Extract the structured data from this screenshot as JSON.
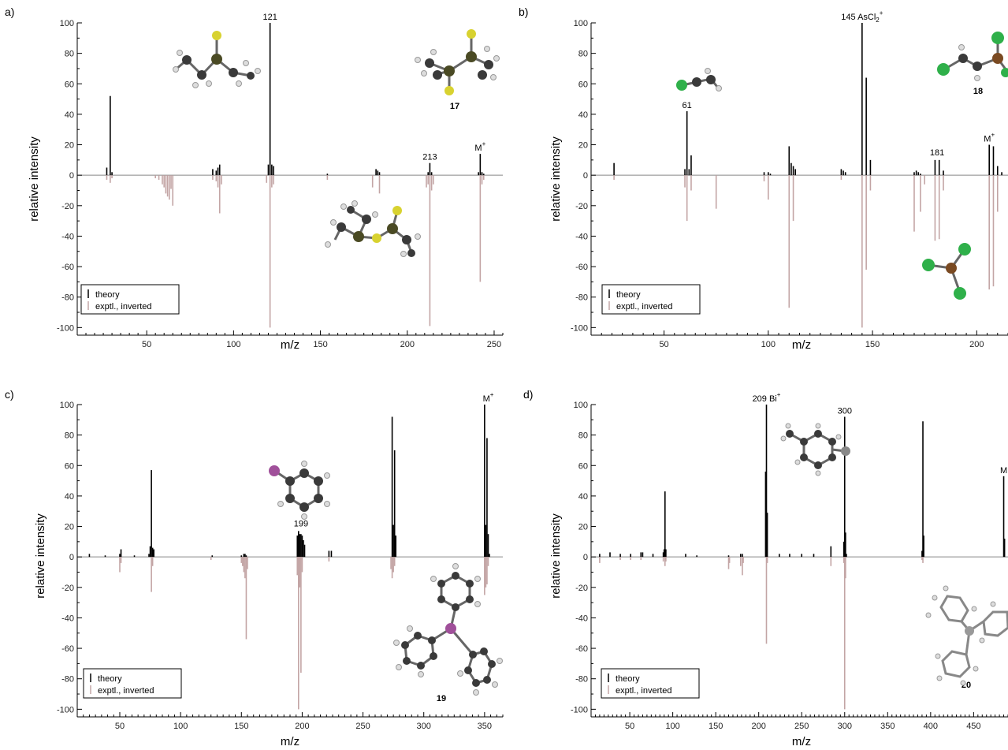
{
  "chart_data": [
    {
      "panel": "a)",
      "type": "bar",
      "xlabel": "m/z",
      "ylabel": "relative intensity",
      "xlim": [
        10,
        255
      ],
      "ylim": [
        -105,
        100
      ],
      "xticks": [
        50,
        100,
        150,
        200,
        250
      ],
      "yticks": [
        100,
        80,
        60,
        40,
        20,
        0,
        -20,
        -40,
        -60,
        -80,
        -100
      ],
      "legend": {
        "placement": "bottom-left",
        "entries": [
          "theory",
          "exptl., inverted"
        ]
      },
      "colors": {
        "theory": "#000000",
        "experiment": "#c3a5a5"
      },
      "compound": "17",
      "annotations": [
        {
          "x": 121,
          "y": 100,
          "text": "121"
        },
        {
          "x": 213,
          "y": 8,
          "text": "213"
        },
        {
          "x": 242,
          "y": 14,
          "text": "M",
          "sup": "+"
        }
      ],
      "series": [
        {
          "name": "theory",
          "points": [
            [
              27,
              5
            ],
            [
              29,
              52
            ],
            [
              30,
              2
            ],
            [
              88,
              4
            ],
            [
              90,
              3
            ],
            [
              91,
              5
            ],
            [
              92,
              7
            ],
            [
              120,
              7
            ],
            [
              121,
              100
            ],
            [
              122,
              7
            ],
            [
              123,
              6
            ],
            [
              154,
              1
            ],
            [
              182,
              4
            ],
            [
              183,
              3
            ],
            [
              184,
              2
            ],
            [
              212,
              2
            ],
            [
              213,
              8
            ],
            [
              214,
              2
            ],
            [
              241,
              2
            ],
            [
              242,
              14
            ],
            [
              243,
              2
            ],
            [
              244,
              1
            ]
          ]
        },
        {
          "name": "exptl., inverted",
          "points": [
            [
              27,
              -3
            ],
            [
              29,
              -5
            ],
            [
              30,
              -2
            ],
            [
              55,
              -2
            ],
            [
              57,
              -3
            ],
            [
              59,
              -6
            ],
            [
              60,
              -8
            ],
            [
              61,
              -12
            ],
            [
              62,
              -14
            ],
            [
              63,
              -16
            ],
            [
              64,
              -9
            ],
            [
              65,
              -20
            ],
            [
              88,
              -3
            ],
            [
              90,
              -4
            ],
            [
              91,
              -8
            ],
            [
              92,
              -25
            ],
            [
              93,
              -6
            ],
            [
              119,
              -5
            ],
            [
              121,
              -100
            ],
            [
              122,
              -8
            ],
            [
              123,
              -6
            ],
            [
              154,
              -3
            ],
            [
              180,
              -8
            ],
            [
              184,
              -12
            ],
            [
              211,
              -8
            ],
            [
              212,
              -6
            ],
            [
              213,
              -99
            ],
            [
              214,
              -10
            ],
            [
              215,
              -6
            ],
            [
              242,
              -70
            ],
            [
              243,
              -6
            ],
            [
              244,
              -3
            ]
          ]
        }
      ]
    },
    {
      "panel": "b)",
      "type": "bar",
      "xlabel": "m/z",
      "ylabel": "relative intensity",
      "xlim": [
        15,
        215
      ],
      "ylim": [
        -105,
        100
      ],
      "xticks": [
        50,
        100,
        150,
        200
      ],
      "yticks": [
        100,
        80,
        60,
        40,
        20,
        0,
        -20,
        -40,
        -60,
        -80,
        -100
      ],
      "legend": {
        "placement": "bottom-left",
        "entries": [
          "theory",
          "exptl., inverted"
        ]
      },
      "colors": {
        "theory": "#000000",
        "experiment": "#c3a5a5"
      },
      "compound": "18",
      "annotations": [
        {
          "x": 145,
          "y": 100,
          "text": "145 AsCl",
          "sub": "2",
          "sup": "+"
        },
        {
          "x": 61,
          "y": 42,
          "text": "61"
        },
        {
          "x": 181,
          "y": 11,
          "text": "181"
        },
        {
          "x": 206,
          "y": 20,
          "text": "M",
          "sup": "+"
        }
      ],
      "series": [
        {
          "name": "theory",
          "points": [
            [
              26,
              8
            ],
            [
              60,
              4
            ],
            [
              61,
              42
            ],
            [
              62,
              4
            ],
            [
              63,
              13
            ],
            [
              98,
              2
            ],
            [
              100,
              2
            ],
            [
              101,
              1
            ],
            [
              110,
              19
            ],
            [
              111,
              8
            ],
            [
              112,
              6
            ],
            [
              113,
              4
            ],
            [
              135,
              4
            ],
            [
              136,
              3
            ],
            [
              137,
              2
            ],
            [
              145,
              100
            ],
            [
              147,
              64
            ],
            [
              149,
              10
            ],
            [
              170,
              2
            ],
            [
              171,
              3
            ],
            [
              172,
              2
            ],
            [
              173,
              1
            ],
            [
              180,
              10
            ],
            [
              182,
              10
            ],
            [
              184,
              3
            ],
            [
              206,
              20
            ],
            [
              208,
              19
            ],
            [
              210,
              6
            ],
            [
              212,
              2
            ]
          ]
        },
        {
          "name": "exptl., inverted",
          "points": [
            [
              26,
              -3
            ],
            [
              60,
              -8
            ],
            [
              61,
              -30
            ],
            [
              63,
              -10
            ],
            [
              75,
              -22
            ],
            [
              98,
              -4
            ],
            [
              100,
              -16
            ],
            [
              110,
              -87
            ],
            [
              112,
              -30
            ],
            [
              135,
              -3
            ],
            [
              145,
              -100
            ],
            [
              147,
              -62
            ],
            [
              149,
              -10
            ],
            [
              170,
              -37
            ],
            [
              173,
              -24
            ],
            [
              175,
              -6
            ],
            [
              180,
              -43
            ],
            [
              182,
              -42
            ],
            [
              184,
              -10
            ],
            [
              206,
              -75
            ],
            [
              208,
              -73
            ],
            [
              210,
              -24
            ]
          ]
        }
      ]
    },
    {
      "panel": "c)",
      "type": "bar",
      "xlabel": "m/z",
      "ylabel": "relative intensity",
      "xlim": [
        15,
        365
      ],
      "ylim": [
        -105,
        100
      ],
      "xticks": [
        50,
        100,
        150,
        200,
        250,
        300,
        350
      ],
      "yticks": [
        100,
        80,
        60,
        40,
        20,
        0,
        -20,
        -40,
        -60,
        -80,
        -100
      ],
      "legend": {
        "placement": "bottom-left",
        "entries": [
          "theory",
          "exptl., inverted"
        ]
      },
      "colors": {
        "theory": "#000000",
        "experiment": "#c3a5a5"
      },
      "compound": "19",
      "annotations": [
        {
          "x": 199,
          "y": 18,
          "text": "199"
        },
        {
          "x": 353,
          "y": 100,
          "text": "M",
          "sup": "+"
        }
      ],
      "series": [
        {
          "name": "theory",
          "points": [
            [
              25,
              2
            ],
            [
              38,
              1
            ],
            [
              50,
              2
            ],
            [
              51,
              5
            ],
            [
              62,
              1
            ],
            [
              74,
              2
            ],
            [
              75,
              7
            ],
            [
              76,
              57
            ],
            [
              77,
              6
            ],
            [
              78,
              5
            ],
            [
              126,
              1
            ],
            [
              150,
              1
            ],
            [
              152,
              2
            ],
            [
              153,
              2
            ],
            [
              154,
              1
            ],
            [
              196,
              14
            ],
            [
              197,
              17
            ],
            [
              198,
              15
            ],
            [
              199,
              15
            ],
            [
              200,
              14
            ],
            [
              201,
              11
            ],
            [
              202,
              8
            ],
            [
              222,
              4
            ],
            [
              224,
              4
            ],
            [
              274,
              92
            ],
            [
              275,
              21
            ],
            [
              276,
              70
            ],
            [
              277,
              14
            ],
            [
              350,
              100
            ],
            [
              351,
              21
            ],
            [
              352,
              78
            ],
            [
              353,
              15
            ],
            [
              354,
              2
            ]
          ]
        },
        {
          "name": "exptl., inverted",
          "points": [
            [
              50,
              -10
            ],
            [
              51,
              -4
            ],
            [
              76,
              -23
            ],
            [
              77,
              -6
            ],
            [
              125,
              -2
            ],
            [
              150,
              -4
            ],
            [
              151,
              -6
            ],
            [
              152,
              -10
            ],
            [
              153,
              -14
            ],
            [
              154,
              -54
            ],
            [
              155,
              -8
            ],
            [
              196,
              -12
            ],
            [
              197,
              -100
            ],
            [
              198,
              -20
            ],
            [
              199,
              -76
            ],
            [
              200,
              -10
            ],
            [
              222,
              -3
            ],
            [
              273,
              -8
            ],
            [
              274,
              -14
            ],
            [
              275,
              -10
            ],
            [
              276,
              -6
            ],
            [
              350,
              -25
            ],
            [
              351,
              -20
            ],
            [
              352,
              -18
            ],
            [
              353,
              -6
            ]
          ]
        }
      ]
    },
    {
      "panel": "d)",
      "type": "bar",
      "xlabel": "m/z",
      "ylabel": "relative intensity",
      "xlim": [
        5,
        490
      ],
      "ylim": [
        -105,
        100
      ],
      "xticks": [
        50,
        100,
        150,
        200,
        250,
        300,
        350,
        400,
        450
      ],
      "yticks": [
        100,
        80,
        60,
        40,
        20,
        0,
        -20,
        -40,
        -60,
        -80,
        -100
      ],
      "legend": {
        "placement": "bottom-left",
        "entries": [
          "theory",
          "exptl., inverted"
        ]
      },
      "colors": {
        "theory": "#000000",
        "experiment": "#c3a5a5"
      },
      "compound": "20",
      "annotations": [
        {
          "x": 209,
          "y": 100,
          "text": "209 Bi",
          "sup": "+"
        },
        {
          "x": 300,
          "y": 92,
          "text": "300"
        },
        {
          "x": 485,
          "y": 53,
          "text": "M"
        }
      ],
      "series": [
        {
          "name": "theory",
          "points": [
            [
              15,
              2
            ],
            [
              27,
              3
            ],
            [
              39,
              2
            ],
            [
              51,
              2
            ],
            [
              63,
              3
            ],
            [
              65,
              3
            ],
            [
              77,
              2
            ],
            [
              89,
              3
            ],
            [
              90,
              5
            ],
            [
              91,
              43
            ],
            [
              92,
              5
            ],
            [
              115,
              2
            ],
            [
              128,
              1
            ],
            [
              165,
              1
            ],
            [
              179,
              2
            ],
            [
              181,
              2
            ],
            [
              208,
              56
            ],
            [
              209,
              100
            ],
            [
              210,
              29
            ],
            [
              224,
              2
            ],
            [
              236,
              2
            ],
            [
              250,
              2
            ],
            [
              264,
              2
            ],
            [
              284,
              7
            ],
            [
              299,
              10
            ],
            [
              300,
              92
            ],
            [
              301,
              16
            ],
            [
              302,
              2
            ],
            [
              390,
              4
            ],
            [
              391,
              89
            ],
            [
              392,
              14
            ],
            [
              485,
              53
            ],
            [
              486,
              12
            ]
          ]
        },
        {
          "name": "exptl., inverted",
          "points": [
            [
              15,
              -4
            ],
            [
              39,
              -2
            ],
            [
              51,
              -2
            ],
            [
              63,
              -2
            ],
            [
              89,
              -3
            ],
            [
              91,
              -6
            ],
            [
              92,
              -3
            ],
            [
              165,
              -8
            ],
            [
              166,
              -4
            ],
            [
              179,
              -6
            ],
            [
              181,
              -12
            ],
            [
              182,
              -4
            ],
            [
              209,
              -57
            ],
            [
              210,
              -4
            ],
            [
              284,
              -6
            ],
            [
              299,
              -4
            ],
            [
              300,
              -100
            ],
            [
              301,
              -14
            ],
            [
              390,
              -2
            ],
            [
              391,
              -4
            ]
          ]
        }
      ]
    }
  ]
}
